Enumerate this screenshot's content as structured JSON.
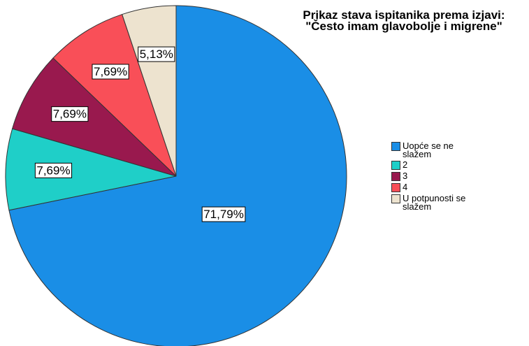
{
  "chart_data": {
    "type": "pie",
    "title": "Prikaz stava ispitanika prema izjavi: \"Često imam glavobolje i migrene\"",
    "categories": [
      "Uopće se ne slažem",
      "2",
      "3",
      "4",
      "U potpunosti se slažem"
    ],
    "values": [
      71.79,
      7.69,
      7.69,
      7.69,
      5.13
    ],
    "value_labels": [
      "71,79%",
      "7,69%",
      "7,69%",
      "7,69%",
      "5,13%"
    ],
    "colors": [
      "#1a8ee6",
      "#1fcfc8",
      "#99194e",
      "#f94f58",
      "#ede3cf"
    ]
  }
}
